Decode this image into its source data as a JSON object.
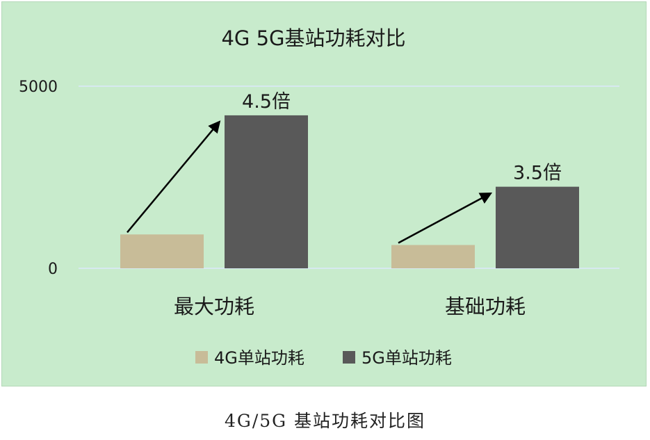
{
  "chart_data": {
    "type": "bar",
    "title": "4G 5G基站功耗对比",
    "categories": [
      "最大功耗",
      "基础功耗"
    ],
    "series": [
      {
        "name": "4G单站功耗",
        "values": [
          930,
          640
        ]
      },
      {
        "name": "5G单站功耗",
        "values": [
          4200,
          2240
        ]
      }
    ],
    "ylim": [
      0,
      5000
    ],
    "yticks": [
      0,
      5000
    ],
    "ytick_labels": [
      "0",
      "5000"
    ],
    "grid": true,
    "legend_position": "bottom",
    "annotations": [
      {
        "category": "最大功耗",
        "text": "4.5倍"
      },
      {
        "category": "基础功耗",
        "text": "3.5倍"
      }
    ],
    "colors": {
      "background": "#c8ebcc",
      "series_4g": "#c8bc98",
      "series_5g": "#595959",
      "gridline": "#d7e9f0",
      "text": "#1a1a1a",
      "arrow": "#000000"
    }
  },
  "caption": "4G/5G 基站功耗对比图"
}
